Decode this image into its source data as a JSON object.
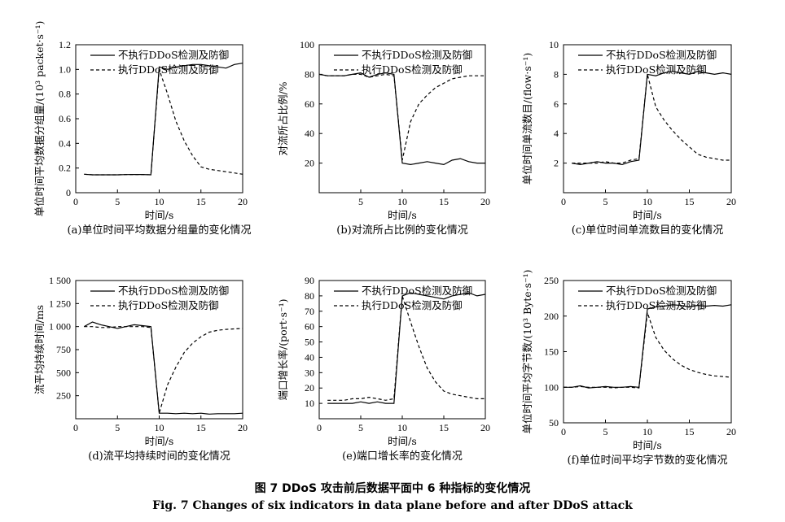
{
  "figure": {
    "title_cn": "图 7    DDoS 攻击前后数据平面中 6 种指标的变化情况",
    "title_en": "Fig. 7    Changes of six indicators in data plane before and after DDoS attack"
  },
  "chart_data": [
    {
      "id": "a",
      "type": "line",
      "caption": "(a)单位时间平均数据分组量的变化情况",
      "xlabel": "时间/s",
      "ylabel": "单位时间平均数据分组量/(10³ packet·s⁻¹)",
      "xlim": [
        0,
        20
      ],
      "ylim": [
        0,
        1.2
      ],
      "xticks": [
        0,
        5,
        10,
        15,
        20
      ],
      "yticks": [
        0,
        0.2,
        0.4,
        0.6,
        0.8,
        1.0,
        1.2
      ],
      "ytick_labels": [
        "0",
        "0.2",
        "0.4",
        "0.6",
        "0.8",
        "1.0",
        "1.2"
      ],
      "grid": false,
      "legend_position": "top",
      "series": [
        {
          "name": "不执行DDoS检测及防御",
          "style": "solid",
          "x": [
            1,
            2,
            3,
            4,
            5,
            6,
            7,
            8,
            9,
            10,
            11,
            12,
            13,
            14,
            15,
            16,
            17,
            18,
            19,
            20
          ],
          "y": [
            0.15,
            0.145,
            0.145,
            0.145,
            0.145,
            0.147,
            0.148,
            0.148,
            0.145,
            1.02,
            1.0,
            1.02,
            1.03,
            1.04,
            1.04,
            1.03,
            1.02,
            1.01,
            1.04,
            1.05
          ]
        },
        {
          "name": "执行DDoS检测及防御",
          "style": "dashed",
          "x": [
            1,
            2,
            3,
            4,
            5,
            6,
            7,
            8,
            9,
            10,
            11,
            12,
            13,
            14,
            15,
            16,
            17,
            18,
            19,
            20
          ],
          "y": [
            0.15,
            0.145,
            0.145,
            0.145,
            0.145,
            0.147,
            0.148,
            0.148,
            0.145,
            1.0,
            0.8,
            0.58,
            0.42,
            0.3,
            0.21,
            0.19,
            0.18,
            0.17,
            0.16,
            0.15
          ]
        }
      ]
    },
    {
      "id": "b",
      "type": "line",
      "caption": "(b)对流所占比例的变化情况",
      "xlabel": "时间/s",
      "ylabel": "对流所占比例/%",
      "xlim": [
        0,
        20
      ],
      "ylim": [
        0,
        100
      ],
      "xticks": [
        5,
        10,
        15,
        20
      ],
      "yticks": [
        20,
        40,
        60,
        80,
        100
      ],
      "ytick_labels": [
        "20",
        "40",
        "60",
        "80",
        "100"
      ],
      "grid": false,
      "legend_position": "top",
      "series": [
        {
          "name": "不执行DDoS检测及防御",
          "style": "solid",
          "x": [
            0,
            1,
            2,
            3,
            4,
            5,
            6,
            7,
            8,
            9,
            10,
            11,
            12,
            13,
            14,
            15,
            16,
            17,
            18,
            19,
            20
          ],
          "y": [
            80,
            79,
            79,
            79,
            80,
            81,
            78,
            80,
            81,
            80,
            20,
            19,
            20,
            21,
            20,
            19,
            22,
            23,
            21,
            20,
            20
          ]
        },
        {
          "name": "执行DDoS检测及防御",
          "style": "dashed",
          "x": [
            0,
            1,
            2,
            3,
            4,
            5,
            6,
            7,
            8,
            9,
            10,
            11,
            12,
            13,
            14,
            15,
            16,
            17,
            18,
            19,
            20
          ],
          "y": [
            80,
            79,
            79,
            79,
            80,
            80,
            78,
            79,
            80,
            79,
            22,
            48,
            60,
            66,
            71,
            74,
            77,
            78,
            79,
            79,
            79
          ]
        }
      ]
    },
    {
      "id": "c",
      "type": "line",
      "caption": "(c)单位时间单流数目的变化情况",
      "xlabel": "时间/s",
      "ylabel": "单位时间单流数目/(flow·s⁻¹)",
      "xlim": [
        0,
        20
      ],
      "ylim": [
        0,
        10
      ],
      "xticks": [
        0,
        5,
        10,
        15,
        20
      ],
      "yticks": [
        2,
        4,
        6,
        8,
        10
      ],
      "ytick_labels": [
        "2",
        "4",
        "6",
        "8",
        "10"
      ],
      "grid": false,
      "legend_position": "top",
      "series": [
        {
          "name": "不执行DDoS检测及防御",
          "style": "solid",
          "x": [
            1,
            2,
            3,
            4,
            5,
            6,
            7,
            8,
            9,
            10,
            11,
            12,
            13,
            14,
            15,
            16,
            17,
            18,
            19,
            20
          ],
          "y": [
            2.0,
            1.9,
            2.0,
            2.1,
            2.0,
            2.0,
            1.9,
            2.1,
            2.2,
            8.0,
            7.9,
            8.1,
            8.2,
            8.1,
            8.0,
            8.2,
            8.1,
            8.0,
            8.1,
            8.0
          ]
        },
        {
          "name": "执行DDoS检测及防御",
          "style": "dashed",
          "x": [
            1,
            2,
            3,
            4,
            5,
            6,
            7,
            8,
            9,
            10,
            11,
            12,
            13,
            14,
            15,
            16,
            17,
            18,
            19,
            20
          ],
          "y": [
            2.0,
            2.0,
            2.0,
            2.0,
            2.1,
            2.0,
            2.0,
            2.2,
            2.3,
            8.0,
            5.8,
            4.9,
            4.2,
            3.6,
            3.1,
            2.6,
            2.4,
            2.3,
            2.2,
            2.2
          ]
        }
      ]
    },
    {
      "id": "d",
      "type": "line",
      "caption": "(d)流平均持续时间的变化情况",
      "xlabel": "时间/s",
      "ylabel": "流平均持续时间/ms",
      "xlim": [
        0,
        20
      ],
      "ylim": [
        0,
        1500
      ],
      "xticks": [
        0,
        5,
        10,
        15,
        20
      ],
      "yticks": [
        250,
        500,
        750,
        1000,
        1250,
        1500
      ],
      "ytick_labels": [
        "250",
        "500",
        "750",
        "1 000",
        "1 250",
        "1 500"
      ],
      "grid": false,
      "legend_position": "top",
      "series": [
        {
          "name": "不执行DDoS检测及防御",
          "style": "solid",
          "x": [
            1,
            2,
            3,
            4,
            5,
            6,
            7,
            8,
            9,
            10,
            11,
            12,
            13,
            14,
            15,
            16,
            17,
            18,
            19,
            20
          ],
          "y": [
            1000,
            1050,
            1020,
            1000,
            980,
            1000,
            1020,
            1010,
            1000,
            60,
            60,
            55,
            60,
            55,
            60,
            50,
            55,
            55,
            55,
            60
          ]
        },
        {
          "name": "执行DDoS检测及防御",
          "style": "dashed",
          "x": [
            1,
            2,
            3,
            4,
            5,
            6,
            7,
            8,
            9,
            10,
            11,
            12,
            13,
            14,
            15,
            16,
            17,
            18,
            19,
            20
          ],
          "y": [
            1000,
            1000,
            990,
            990,
            1000,
            1000,
            1000,
            1000,
            990,
            60,
            370,
            560,
            720,
            820,
            890,
            940,
            960,
            970,
            975,
            980
          ]
        }
      ]
    },
    {
      "id": "e",
      "type": "line",
      "caption": "(e)端口增长率的变化情况",
      "xlabel": "时间/s",
      "ylabel": "端口增长率/(port·s⁻¹)",
      "xlim": [
        0,
        20
      ],
      "ylim": [
        0,
        90
      ],
      "xticks": [
        0,
        5,
        10,
        15,
        20
      ],
      "yticks": [
        10,
        20,
        30,
        40,
        50,
        60,
        70,
        80,
        90
      ],
      "ytick_labels": [
        "10",
        "20",
        "30",
        "40",
        "50",
        "60",
        "70",
        "80",
        "90"
      ],
      "grid": false,
      "legend_position": "top",
      "series": [
        {
          "name": "不执行DDoS检测及防御",
          "style": "solid",
          "x": [
            1,
            2,
            3,
            4,
            5,
            6,
            7,
            8,
            9,
            10,
            11,
            12,
            13,
            14,
            15,
            16,
            17,
            18,
            19,
            20
          ],
          "y": [
            10,
            10,
            10,
            10,
            11,
            10,
            11,
            10,
            10,
            80,
            82,
            81,
            80,
            79,
            78,
            80,
            81,
            82,
            80,
            81
          ]
        },
        {
          "name": "执行DDoS检测及防御",
          "style": "dashed",
          "x": [
            1,
            2,
            3,
            4,
            5,
            6,
            7,
            8,
            9,
            10,
            11,
            12,
            13,
            14,
            15,
            16,
            17,
            18,
            19,
            20
          ],
          "y": [
            12,
            12,
            12,
            13,
            13,
            14,
            13,
            12,
            13,
            80,
            63,
            47,
            33,
            24,
            18,
            16,
            15,
            14,
            13,
            13
          ]
        }
      ]
    },
    {
      "id": "f",
      "type": "line",
      "caption": "(f)单位时间平均字节数的变化情况",
      "xlabel": "时间/s",
      "ylabel": "单位时间平均字节数/(10³ Byte·s⁻¹)",
      "xlim": [
        0,
        20
      ],
      "ylim": [
        50,
        250
      ],
      "xticks": [
        0,
        5,
        10,
        15,
        20
      ],
      "yticks": [
        50,
        100,
        150,
        200,
        250
      ],
      "ytick_labels": [
        "50",
        "100",
        "150",
        "200",
        "250"
      ],
      "grid": false,
      "legend_position": "top",
      "series": [
        {
          "name": "不执行DDoS检测及防御",
          "style": "solid",
          "x": [
            0,
            1,
            2,
            3,
            4,
            5,
            6,
            7,
            8,
            9,
            10,
            11,
            12,
            13,
            14,
            15,
            16,
            17,
            18,
            19,
            20
          ],
          "y": [
            100,
            100,
            102,
            99,
            100,
            101,
            100,
            100,
            101,
            100,
            210,
            213,
            214,
            216,
            215,
            213,
            215,
            214,
            215,
            214,
            216
          ]
        },
        {
          "name": "执行DDoS检测及防御",
          "style": "dashed",
          "x": [
            0,
            1,
            2,
            3,
            4,
            5,
            6,
            7,
            8,
            9,
            10,
            11,
            12,
            13,
            14,
            15,
            16,
            17,
            18,
            19,
            20
          ],
          "y": [
            100,
            100,
            101,
            100,
            100,
            100,
            99,
            100,
            100,
            99,
            205,
            170,
            152,
            140,
            131,
            125,
            121,
            118,
            116,
            115,
            114
          ]
        }
      ]
    }
  ]
}
